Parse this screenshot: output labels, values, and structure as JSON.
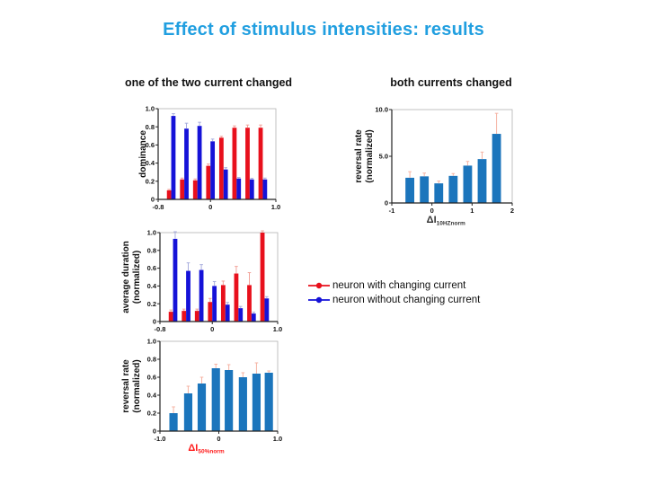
{
  "slide": {
    "title": "Effect of stimulus intensities: results",
    "title_color": "#219fe0",
    "left_column_header": "one of the two current changed",
    "right_column_header": "both currents changed",
    "background_color": "#ffffff"
  },
  "legend": {
    "items": [
      {
        "label": "neuron with changing current",
        "color": "#e8101c",
        "marker": "red-line-circle"
      },
      {
        "label": "neuron without changing current",
        "color": "#1512d8",
        "marker": "blue-line-circle"
      }
    ]
  },
  "chart_data": [
    {
      "id": "dominance",
      "type": "bar",
      "panel": "one of the two current changed",
      "ylabel": [
        "dominance"
      ],
      "x": {
        "min": -0.8,
        "max": 1.0,
        "ticks": [
          -0.8,
          0,
          1.0
        ],
        "tick_labels": [
          "-0.8",
          "0",
          "1.0"
        ]
      },
      "y": {
        "min": 0,
        "max": 1.0,
        "ticks": [
          0,
          0.2,
          0.4,
          0.6,
          0.8,
          1.0
        ],
        "tick_labels": [
          "0",
          "0.2",
          "0.4",
          "0.6",
          "0.8",
          "1.0"
        ]
      },
      "categories_x": [
        -0.6,
        -0.4,
        -0.2,
        0,
        0.2,
        0.4,
        0.6,
        0.8
      ],
      "bar_width": 0.066,
      "grid": false,
      "series": [
        {
          "name": "neuron with changing current",
          "color": "#e8101c",
          "err_color": "#f2a39b",
          "offset": -0.033,
          "values": [
            0.1,
            0.22,
            0.21,
            0.37,
            0.68,
            0.79,
            0.79,
            0.79
          ],
          "errors": [
            0.01,
            0.015,
            0.015,
            0.02,
            0.015,
            0.02,
            0.03,
            0.03
          ]
        },
        {
          "name": "neuron without changing current",
          "color": "#1512d8",
          "err_color": "#a9aede",
          "offset": 0.033,
          "values": [
            0.92,
            0.78,
            0.81,
            0.64,
            0.33,
            0.23,
            0.22,
            0.22
          ],
          "errors": [
            0.025,
            0.06,
            0.04,
            0.025,
            0.02,
            0.012,
            0.012,
            0.015
          ]
        }
      ]
    },
    {
      "id": "avg_duration",
      "type": "bar",
      "panel": "one of the two current changed",
      "ylabel": [
        "average duration",
        "(normalized)"
      ],
      "x": {
        "min": -0.8,
        "max": 1.0,
        "ticks": [
          -0.8,
          0,
          1.0
        ],
        "tick_labels": [
          "-0.8",
          "0",
          "1.0"
        ]
      },
      "y": {
        "min": 0,
        "max": 1.0,
        "ticks": [
          0,
          0.2,
          0.4,
          0.6,
          0.8,
          1.0
        ],
        "tick_labels": [
          "0",
          "0.2",
          "0.4",
          "0.6",
          "0.8",
          "1.0"
        ]
      },
      "categories_x": [
        -0.6,
        -0.4,
        -0.2,
        0,
        0.2,
        0.4,
        0.6,
        0.8
      ],
      "bar_width": 0.066,
      "grid": false,
      "series": [
        {
          "name": "neuron with changing current",
          "color": "#e8101c",
          "err_color": "#f2a39b",
          "offset": -0.033,
          "values": [
            0.11,
            0.12,
            0.12,
            0.22,
            0.41,
            0.54,
            0.41,
            1.0
          ],
          "errors": [
            0.02,
            0.02,
            0.02,
            0.04,
            0.045,
            0.08,
            0.14,
            0.02
          ]
        },
        {
          "name": "neuron without changing current",
          "color": "#1512d8",
          "err_color": "#a9aede",
          "offset": 0.033,
          "values": [
            0.93,
            0.57,
            0.58,
            0.4,
            0.19,
            0.15,
            0.09,
            0.26
          ],
          "errors": [
            0.08,
            0.09,
            0.06,
            0.05,
            0.025,
            0.02,
            0.015,
            0.02
          ]
        }
      ]
    },
    {
      "id": "reversal_one",
      "type": "bar",
      "panel": "one of the two current changed",
      "ylabel": [
        "reversal rate",
        "(normalized)"
      ],
      "xlabel": {
        "text": "ΔI",
        "sub": "50%norm",
        "color": "#ff1a1a"
      },
      "x": {
        "min": -1.0,
        "max": 1.0,
        "ticks": [
          -1.0,
          0,
          1.0
        ],
        "tick_labels": [
          "-1.0",
          "0",
          "1.0"
        ]
      },
      "y": {
        "min": 0,
        "max": 1.0,
        "ticks": [
          0,
          0.2,
          0.4,
          0.6,
          0.8,
          1.0
        ],
        "tick_labels": [
          "0",
          "0.2",
          "0.4",
          "0.6",
          "0.8",
          "1.0"
        ]
      },
      "categories_x": [
        -0.77,
        -0.52,
        -0.29,
        -0.05,
        0.17,
        0.41,
        0.64,
        0.85
      ],
      "bar_width": 0.14,
      "grid": false,
      "series": [
        {
          "name": "reversal rate",
          "color": "#1b75bc",
          "err_color": "#f5b3a3",
          "offset": 0,
          "values": [
            0.2,
            0.42,
            0.53,
            0.7,
            0.68,
            0.6,
            0.64,
            0.65
          ],
          "errors": [
            0.07,
            0.08,
            0.07,
            0.045,
            0.06,
            0.05,
            0.12,
            0.02
          ]
        }
      ]
    },
    {
      "id": "reversal_both",
      "type": "bar",
      "panel": "both currents changed",
      "ylabel": [
        "reversal rate",
        "(normalized)"
      ],
      "xlabel": {
        "text": "ΔI",
        "sub": "10HZnorm",
        "color": "#333333"
      },
      "x": {
        "min": -1,
        "max": 2,
        "ticks": [
          -1,
          0,
          1,
          2
        ],
        "tick_labels": [
          "-1",
          "0",
          "1",
          "2"
        ]
      },
      "y": {
        "min": 0,
        "max": 10.0,
        "ticks": [
          0,
          5.0,
          10.0
        ],
        "tick_labels": [
          "0",
          "5.0",
          "10.0"
        ]
      },
      "categories_x": [
        -0.55,
        -0.19,
        0.17,
        0.53,
        0.89,
        1.25,
        1.61
      ],
      "bar_width": 0.22,
      "grid": false,
      "series": [
        {
          "name": "reversal rate",
          "color": "#1b75bc",
          "err_color": "#f5b3a3",
          "offset": 0,
          "values": [
            2.7,
            2.85,
            2.1,
            2.9,
            4.0,
            4.7,
            7.4
          ],
          "errors": [
            0.65,
            0.35,
            0.25,
            0.25,
            0.45,
            0.75,
            2.2
          ]
        }
      ]
    }
  ]
}
